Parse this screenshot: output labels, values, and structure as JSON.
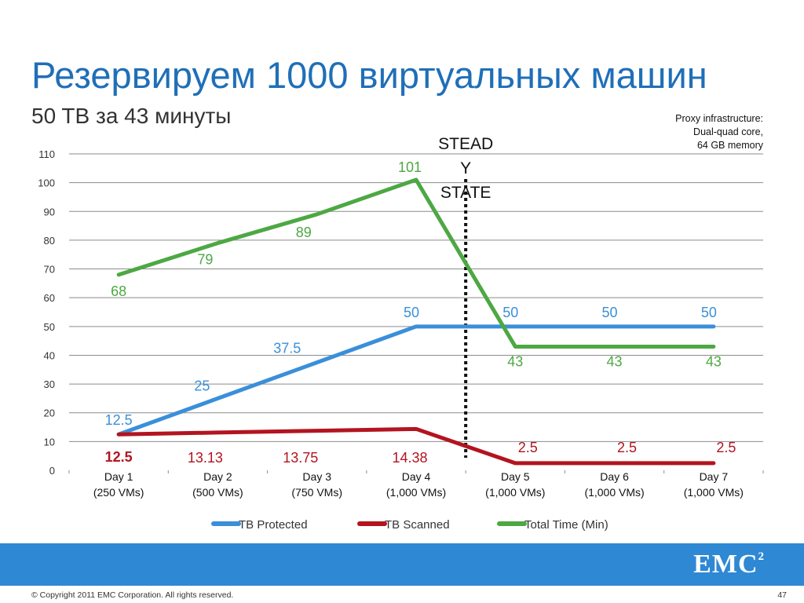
{
  "slide": {
    "title": "Резервируем 1000 виртуальных машин",
    "subtitle": "50 TB за 43 минуты",
    "note_lines": [
      "Proxy infrastructure:",
      "Dual-quad core,",
      "64 GB memory"
    ],
    "logo_text": "EMC",
    "logo_sup": "2",
    "copyright": "© Copyright 2011 EMC Corporation. All rights reserved.",
    "page_number": "47"
  },
  "chart_data": {
    "type": "line",
    "categories": [
      [
        "Day 1",
        "(250 VMs)"
      ],
      [
        "Day 2",
        "(500 VMs)"
      ],
      [
        "Day 3",
        "(750 VMs)"
      ],
      [
        "Day 4",
        "(1,000 VMs)"
      ],
      [
        "Day 5",
        "(1,000 VMs)"
      ],
      [
        "Day 6",
        "(1,000 VMs)"
      ],
      [
        "Day 7",
        "(1,000 VMs)"
      ]
    ],
    "ylim": [
      0,
      110
    ],
    "yticks": [
      0,
      10,
      20,
      30,
      40,
      50,
      60,
      70,
      80,
      90,
      100,
      110
    ],
    "grid": true,
    "legend": "bottom",
    "series": [
      {
        "name": "TB Protected",
        "color": "#3a8fd9",
        "values": [
          12.5,
          25,
          37.5,
          50,
          50,
          50,
          50
        ],
        "labels": [
          "12.5",
          "25",
          "37.5",
          "50",
          "50",
          "50",
          "50"
        ]
      },
      {
        "name": "TB Scanned",
        "color": "#b3141f",
        "values": [
          12.5,
          13.13,
          13.75,
          14.38,
          2.5,
          2.5,
          2.5
        ],
        "labels": [
          "12.5",
          "13.13",
          "13.75",
          "14.38",
          "2.5",
          "2.5",
          "2.5"
        ]
      },
      {
        "name": "Total Time (Min)",
        "color": "#4da843",
        "values": [
          68,
          79,
          89,
          101,
          43,
          43,
          43
        ],
        "labels": [
          "68",
          "79",
          "89",
          "101",
          "43",
          "43",
          "43"
        ]
      }
    ],
    "annotation": {
      "lines": [
        "STEAD",
        "Y",
        "STATE"
      ],
      "between": [
        3,
        4
      ]
    }
  }
}
